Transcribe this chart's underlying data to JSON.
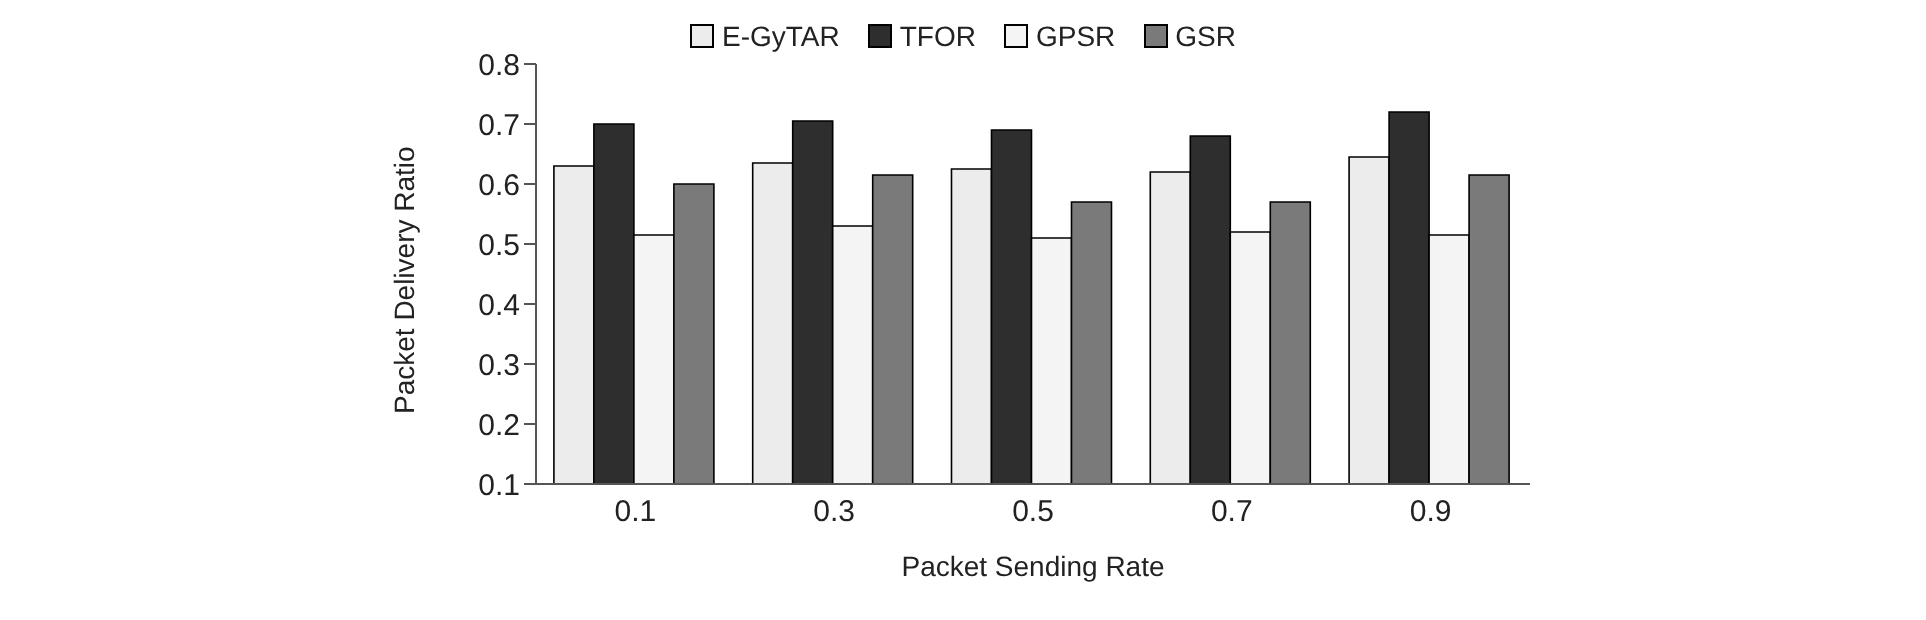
{
  "chart_data": {
    "type": "bar",
    "xlabel": "Packet Sending Rate",
    "ylabel": "Packet Delivery Ratio",
    "categories": [
      "0.1",
      "0.3",
      "0.5",
      "0.7",
      "0.9"
    ],
    "series": [
      {
        "name": "E-GyTAR",
        "color": "#ececec",
        "values": [
          0.63,
          0.635,
          0.625,
          0.62,
          0.645
        ]
      },
      {
        "name": "TFOR",
        "color": "#2e2e2e",
        "values": [
          0.7,
          0.705,
          0.69,
          0.68,
          0.72
        ]
      },
      {
        "name": "GPSR",
        "color": "#f4f4f4",
        "values": [
          0.515,
          0.53,
          0.51,
          0.52,
          0.515
        ]
      },
      {
        "name": "GSR",
        "color": "#7a7a7a",
        "values": [
          0.6,
          0.615,
          0.57,
          0.57,
          0.615
        ]
      }
    ],
    "ylim": [
      0.1,
      0.8
    ],
    "yticks": [
      0.1,
      0.2,
      0.3,
      0.4,
      0.5,
      0.6,
      0.7,
      0.8
    ],
    "grid": false,
    "legend": "top"
  }
}
